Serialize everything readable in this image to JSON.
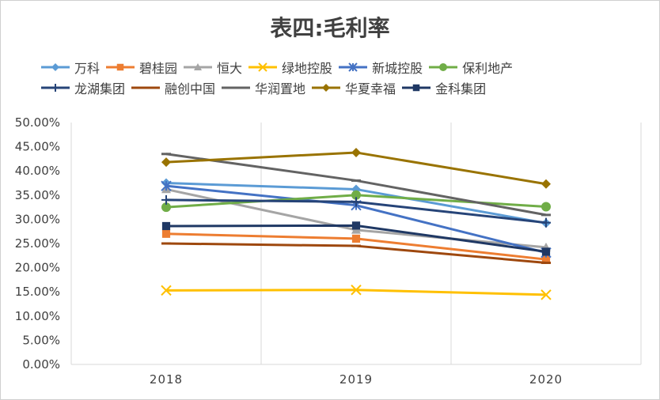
{
  "chart_data": {
    "type": "line",
    "title": "表四:毛利率",
    "categories": [
      "2018",
      "2019",
      "2020"
    ],
    "ylim": [
      0,
      50
    ],
    "y_ticks": [
      "0.00%",
      "5.00%",
      "10.00%",
      "15.00%",
      "20.00%",
      "25.00%",
      "30.00%",
      "35.00%",
      "40.00%",
      "45.00%",
      "50.00%"
    ],
    "grid": "vertical",
    "legend_placement": "top",
    "series": [
      {
        "name": "万科",
        "values": [
          37.5,
          36.2,
          29.2
        ],
        "color": "#5b9bd5",
        "marker": "diamond"
      },
      {
        "name": "碧桂园",
        "values": [
          27.0,
          26.0,
          21.7
        ],
        "color": "#ed7d31",
        "marker": "square"
      },
      {
        "name": "恒大",
        "values": [
          36.2,
          27.8,
          24.2
        ],
        "color": "#a5a5a5",
        "marker": "triangle"
      },
      {
        "name": "绿地控股",
        "values": [
          15.3,
          15.4,
          14.4
        ],
        "color": "#ffc000",
        "marker": "x"
      },
      {
        "name": "新城控股",
        "values": [
          36.9,
          32.9,
          23.1
        ],
        "color": "#4472c4",
        "marker": "star"
      },
      {
        "name": "保利地产",
        "values": [
          32.5,
          35.0,
          32.6
        ],
        "color": "#70ad47",
        "marker": "circle"
      },
      {
        "name": "龙湖集团",
        "values": [
          34.0,
          33.6,
          29.3
        ],
        "color": "#264478",
        "marker": "plus"
      },
      {
        "name": "融创中国",
        "values": [
          25.0,
          24.5,
          21.0
        ],
        "color": "#9e480e",
        "marker": "dash"
      },
      {
        "name": "华润置地",
        "values": [
          43.5,
          38.0,
          30.9
        ],
        "color": "#636363",
        "marker": "dash"
      },
      {
        "name": "华夏幸福",
        "values": [
          41.8,
          43.8,
          37.3
        ],
        "color": "#997300",
        "marker": "diamond"
      },
      {
        "name": "金科集团",
        "values": [
          28.6,
          28.7,
          23.3
        ],
        "color": "#1f3864",
        "marker": "square"
      }
    ]
  }
}
